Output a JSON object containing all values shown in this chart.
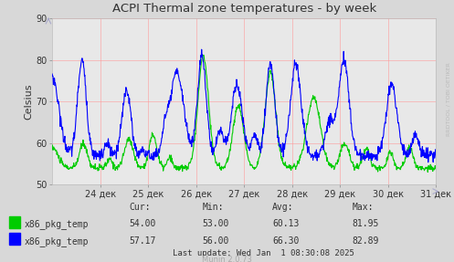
{
  "title": "ACPI Thermal zone temperatures - by week",
  "ylabel": "Celsius",
  "bg_color": "#d8d8d8",
  "plot_bg_color": "#e8e8e8",
  "grid_color": "#ff9999",
  "line1_color": "#00cc00",
  "line2_color": "#0000ff",
  "ylim": [
    50,
    90
  ],
  "yticks": [
    50,
    60,
    70,
    80,
    90
  ],
  "x_labels": [
    "24 дек",
    "25 дек",
    "26 дек",
    "27 дек",
    "28 дек",
    "29 дек",
    "30 дек",
    "31 дек"
  ],
  "legend": [
    {
      "label": "x86_pkg_temp",
      "color": "#00cc00"
    },
    {
      "label": "x86_pkg_temp",
      "color": "#0000ff"
    }
  ],
  "stats_header": [
    "Cur:",
    "Min:",
    "Avg:",
    "Max:"
  ],
  "stats_row1": [
    "54.00",
    "53.00",
    "60.13",
    "81.95"
  ],
  "stats_row2": [
    "57.17",
    "56.00",
    "66.30",
    "82.89"
  ],
  "last_update": "Last update: Wed Jan  1 08:30:08 2025",
  "munin_version": "Munin 2.0.73",
  "watermark": "RRDTOOL / TOBI OETIKER"
}
